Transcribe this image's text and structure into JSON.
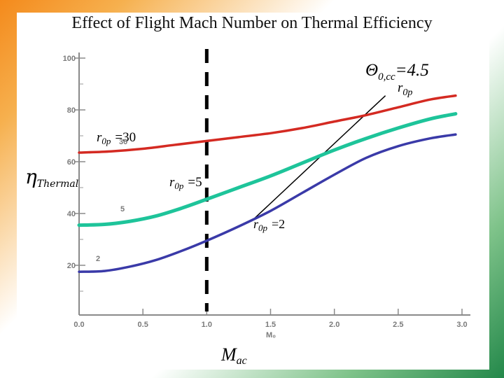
{
  "title": "Effect of Flight Mach Number on Thermal Efficiency",
  "colors": {
    "r0p_30": "#d42a22",
    "r0p_5": "#1ec49a",
    "r0p_2": "#3a3aa8",
    "guide_line": "#000000"
  },
  "chart_data": {
    "type": "line",
    "xlabel": "M₀",
    "ylabel": "η",
    "ylabel_sub": "Thermal",
    "xaxis_caption": "M",
    "xaxis_caption_sub": "ac",
    "xlim": [
      0,
      3.0
    ],
    "ylim": [
      0,
      100
    ],
    "xticks": [
      "0.0",
      "0.5",
      "1.0",
      "1.5",
      "2.0",
      "2.5",
      "3.0"
    ],
    "yticks": [
      "20",
      "40",
      "60",
      "80",
      "100"
    ],
    "series": [
      {
        "name": "r0p =30",
        "tag": "30",
        "x": [
          0,
          0.25,
          0.5,
          0.75,
          1.0,
          1.25,
          1.5,
          1.75,
          2.0,
          2.25,
          2.5,
          2.75,
          2.95
        ],
        "y": [
          63.5,
          64,
          65,
          66.5,
          68,
          69.5,
          71,
          73,
          75.5,
          78,
          81,
          84,
          85.5
        ]
      },
      {
        "name": "r0p =5",
        "tag": "5",
        "x": [
          0,
          0.2,
          0.4,
          0.6,
          0.8,
          1.0,
          1.25,
          1.5,
          1.75,
          2.0,
          2.25,
          2.5,
          2.75,
          2.95
        ],
        "y": [
          35.5,
          35.8,
          37,
          39,
          42,
          45.5,
          50,
          54.5,
          59.5,
          64.5,
          69,
          73,
          76.5,
          78.5
        ]
      },
      {
        "name": "r0p =2",
        "tag": "2",
        "x": [
          0,
          0.2,
          0.4,
          0.6,
          0.8,
          1.0,
          1.25,
          1.5,
          1.75,
          2.0,
          2.25,
          2.5,
          2.75,
          2.95
        ],
        "y": [
          17.5,
          17.8,
          19.5,
          22,
          25.5,
          29.5,
          35,
          41,
          48,
          55,
          61.5,
          66,
          69,
          70.5
        ]
      }
    ],
    "annotations": {
      "theta": "Θ",
      "theta_sub": "0,cc",
      "theta_value": "=4.5",
      "r_label": "r",
      "r_sub": "0p",
      "r_values": [
        "=30",
        "=5",
        "=2"
      ]
    },
    "vline_x": 1.0,
    "guide_line": {
      "from": [
        1.35,
        37
      ],
      "to": [
        2.4,
        85.5
      ]
    }
  }
}
